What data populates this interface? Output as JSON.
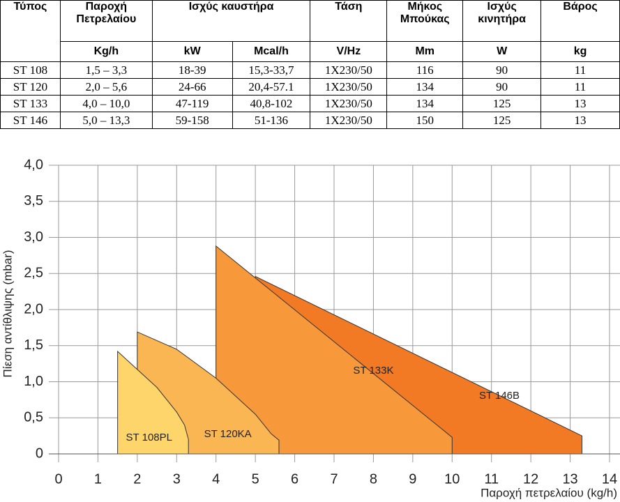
{
  "table": {
    "header": [
      "Τύπος",
      "Παροχή Πετρελαίου",
      "Ισχύς καυστήρα",
      "Τάση",
      "Μήκος Μπούκας",
      "Ισχύς κινητήρα",
      "Βάρος"
    ],
    "units": [
      "Kg/h",
      "kW",
      "Mcal/h",
      "V/Hz",
      "Mm",
      "W",
      "kg"
    ],
    "rows": [
      [
        "ST 108",
        "1,5 – 3,3",
        "18-39",
        "15,3-33,7",
        "1X230/50",
        "116",
        "90",
        "11"
      ],
      [
        "ST 120",
        "2,0 – 5,6",
        "24-66",
        "20,4-57.1",
        "1X230/50",
        "134",
        "90",
        "11"
      ],
      [
        "ST 133",
        "4,0 – 10,0",
        "47-119",
        "40,8-102",
        "1X230/50",
        "134",
        "125",
        "13"
      ],
      [
        "ST 146",
        "5,0 – 13,3",
        "59-158",
        "51-136",
        "1X230/50",
        "150",
        "125",
        "13"
      ]
    ]
  },
  "chart_data": {
    "type": "area",
    "x_label": "Παροχή πετρελαίου (kg/h)",
    "y_label": "Πίεση αντίθλιψης (mbar)",
    "xlim": [
      0,
      14
    ],
    "ylim": [
      0,
      4
    ],
    "xticks": [
      0,
      1,
      2,
      3,
      4,
      5,
      6,
      7,
      8,
      9,
      10,
      11,
      12,
      13,
      14
    ],
    "yticks": [
      0,
      {
        "value": 0.5,
        "label": "0,5"
      },
      {
        "value": 1,
        "label": "1,0"
      },
      {
        "value": 1.5,
        "label": "1,5"
      },
      {
        "value": 2,
        "label": "2,0"
      },
      {
        "value": 2.5,
        "label": "2,5"
      },
      {
        "value": 3,
        "label": "3,0"
      },
      {
        "value": 3.5,
        "label": "3,5"
      },
      {
        "value": 4,
        "label": "4,0"
      }
    ],
    "grid": true,
    "series": [
      {
        "name": "ST 146B",
        "color": "#f27a25",
        "x": [
          5,
          5,
          13.3,
          13.3
        ],
        "values": [
          0,
          2.46,
          0.25,
          0
        ]
      },
      {
        "name": "ST 133K",
        "color": "#f7993a",
        "x": [
          4,
          4,
          10,
          10
        ],
        "values": [
          0,
          2.88,
          0.23,
          0
        ]
      },
      {
        "name": "ST 120KA",
        "color": "#fbb654",
        "x": [
          2,
          2,
          3,
          4,
          5,
          5.4,
          5.6,
          5.6
        ],
        "values": [
          0,
          1.69,
          1.45,
          1.05,
          0.55,
          0.28,
          0.19,
          0
        ]
      },
      {
        "name": "ST 108PL",
        "color": "#fdd56a",
        "x": [
          1.5,
          1.5,
          2.5,
          3,
          3.2,
          3.3,
          3.3
        ],
        "values": [
          0,
          1.42,
          0.92,
          0.58,
          0.4,
          0.2,
          0
        ]
      }
    ]
  }
}
